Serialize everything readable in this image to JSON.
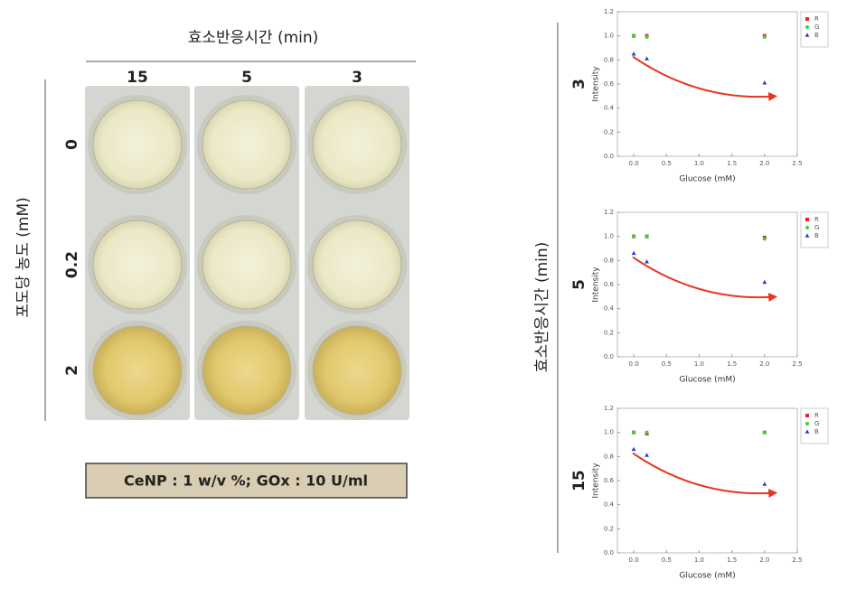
{
  "photo": {
    "title": "효소반응시간 (min)",
    "columns": [
      "15",
      "5",
      "3"
    ],
    "rows": [
      "0",
      "0.2",
      "2"
    ],
    "ylabel": "포도당 농도 (mM)",
    "note": "CeNP : 1 w/v %; GOx : 10 U/ml"
  },
  "side_label": "효소반응시간 (min)",
  "chart_data": [
    {
      "type": "scatter",
      "panel_label": "3",
      "x_label": "Glucose (mM)",
      "y_label": "Intensity",
      "legend": "right",
      "x": [
        0,
        0.2,
        2
      ],
      "series": [
        {
          "name": "R",
          "color": "#e8202a",
          "marker": "square",
          "values": [
            1.0,
            1.0,
            1.0
          ]
        },
        {
          "name": "G",
          "color": "#33d633",
          "marker": "circle",
          "values": [
            1.0,
            0.99,
            0.99
          ]
        },
        {
          "name": "B",
          "color": "#1f3fc8",
          "marker": "triangle",
          "values": [
            0.85,
            0.81,
            0.61
          ]
        }
      ],
      "xlim": [
        -0.25,
        2.5
      ],
      "xticks": [
        {
          "value": 0,
          "label": "0.0"
        },
        0.5,
        {
          "value": 1,
          "label": "1.0"
        },
        1.5,
        {
          "value": 2,
          "label": "2.0"
        },
        2.5
      ],
      "ylim": [
        0,
        1.2
      ],
      "yticks": [
        {
          "value": 0,
          "label": "0.0"
        },
        0.2,
        0.4,
        0.6,
        0.8,
        {
          "value": 1,
          "label": "1.0"
        },
        1.2
      ]
    },
    {
      "type": "scatter",
      "panel_label": "5",
      "x_label": "Glucose (mM)",
      "y_label": "Intensity",
      "legend": "right",
      "x": [
        0,
        0.2,
        2
      ],
      "series": [
        {
          "name": "R",
          "color": "#e8202a",
          "marker": "square",
          "values": [
            1.0,
            1.0,
            0.99
          ]
        },
        {
          "name": "G",
          "color": "#33d633",
          "marker": "circle",
          "values": [
            1.0,
            1.0,
            0.98
          ]
        },
        {
          "name": "B",
          "color": "#1f3fc8",
          "marker": "triangle",
          "values": [
            0.86,
            0.79,
            0.62
          ]
        }
      ],
      "xlim": [
        -0.25,
        2.5
      ],
      "xticks": [
        {
          "value": 0,
          "label": "0.0"
        },
        0.5,
        {
          "value": 1,
          "label": "1.0"
        },
        1.5,
        {
          "value": 2,
          "label": "2.0"
        },
        2.5
      ],
      "ylim": [
        0,
        1.2
      ],
      "yticks": [
        {
          "value": 0,
          "label": "0.0"
        },
        0.2,
        0.4,
        0.6,
        0.8,
        {
          "value": 1,
          "label": "1.0"
        },
        1.2
      ]
    },
    {
      "type": "scatter",
      "panel_label": "15",
      "x_label": "Glucose (mM)",
      "y_label": "Intensity",
      "legend": "right",
      "x": [
        0,
        0.2,
        2
      ],
      "series": [
        {
          "name": "R",
          "color": "#e8202a",
          "marker": "square",
          "values": [
            1.0,
            0.99,
            1.0
          ]
        },
        {
          "name": "G",
          "color": "#33d633",
          "marker": "circle",
          "values": [
            1.0,
            1.0,
            1.0
          ]
        },
        {
          "name": "B",
          "color": "#1f3fc8",
          "marker": "triangle",
          "values": [
            0.86,
            0.81,
            0.57
          ]
        }
      ],
      "xlim": [
        -0.25,
        2.5
      ],
      "xticks": [
        {
          "value": 0,
          "label": "0.0"
        },
        0.5,
        {
          "value": 1,
          "label": "1.0"
        },
        1.5,
        {
          "value": 2,
          "label": "2.0"
        },
        2.5
      ],
      "ylim": [
        0,
        1.2
      ],
      "yticks": [
        {
          "value": 0,
          "label": "0.0"
        },
        0.2,
        0.4,
        0.6,
        0.8,
        {
          "value": 1,
          "label": "1.0"
        },
        1.2
      ]
    }
  ]
}
